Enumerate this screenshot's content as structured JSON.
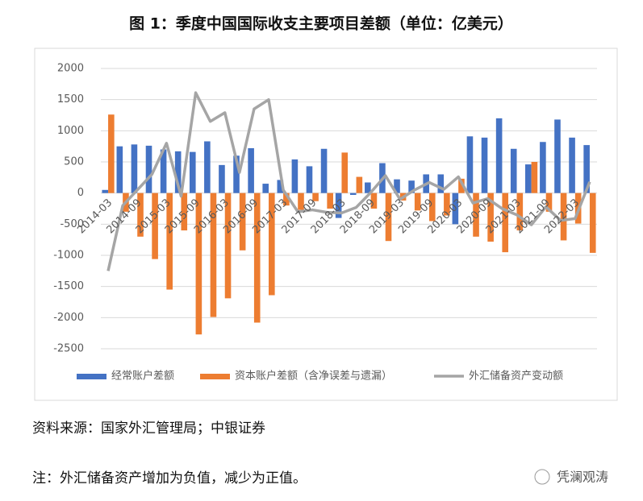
{
  "chart_data": {
    "type": "bar",
    "title": "图 1：季度中国国际收支主要项目差额（单位：亿美元）",
    "categories": [
      "2014-03",
      null,
      "2014-09",
      null,
      "2015-03",
      null,
      "2015-09",
      null,
      "2016-03",
      null,
      "2016-09",
      null,
      "2017-03",
      null,
      "2017-09",
      null,
      "2018-03",
      null,
      "2018-09",
      null,
      "2019-03",
      null,
      "2019-09",
      null,
      "2020-03",
      null,
      "2020-09",
      null,
      "2021-03",
      null,
      "2021-09",
      null,
      "2022-03",
      null
    ],
    "series": [
      {
        "name": "经常账户差额",
        "color": "#4472c4",
        "type": "bar",
        "values": [
          50,
          750,
          780,
          760,
          700,
          670,
          660,
          830,
          450,
          600,
          720,
          150,
          210,
          540,
          430,
          710,
          -400,
          -30,
          170,
          480,
          220,
          200,
          300,
          300,
          -500,
          910,
          890,
          1200,
          710,
          460,
          820,
          1180,
          890,
          770
        ]
      },
      {
        "name": "资本账户差额（含净误差与遗漏）",
        "color": "#ed7d31",
        "type": "bar",
        "values": [
          1260,
          -300,
          -700,
          -1060,
          -1550,
          -600,
          -2270,
          -1990,
          -1690,
          -920,
          -2080,
          -1640,
          -200,
          -270,
          -130,
          -250,
          650,
          260,
          -250,
          -770,
          -120,
          -280,
          -450,
          -360,
          230,
          -700,
          -780,
          -950,
          -600,
          500,
          -300,
          -760,
          -490,
          -960
        ]
      },
      {
        "name": "外汇储备资产变动额",
        "color": "#a5a5a5",
        "type": "line",
        "values": [
          -1250,
          -200,
          50,
          300,
          800,
          -50,
          1610,
          1150,
          1290,
          330,
          1350,
          1500,
          50,
          -300,
          -270,
          -310,
          -320,
          -230,
          10,
          280,
          -100,
          50,
          170,
          60,
          260,
          -160,
          -90,
          -250,
          -350,
          -510,
          -220,
          -440,
          -410,
          180
        ]
      }
    ],
    "ylim": [
      -2500,
      2000
    ],
    "yticks": [
      -2500,
      -2000,
      -1500,
      -1000,
      -500,
      0,
      500,
      1000,
      1500,
      2000
    ],
    "grid": true,
    "legend": "bottom"
  },
  "source": "资料来源：国家外汇管理局；中银证券",
  "note": "注：外汇储备资产增加为负值，减少为正值。",
  "watermark": "凭澜观涛"
}
